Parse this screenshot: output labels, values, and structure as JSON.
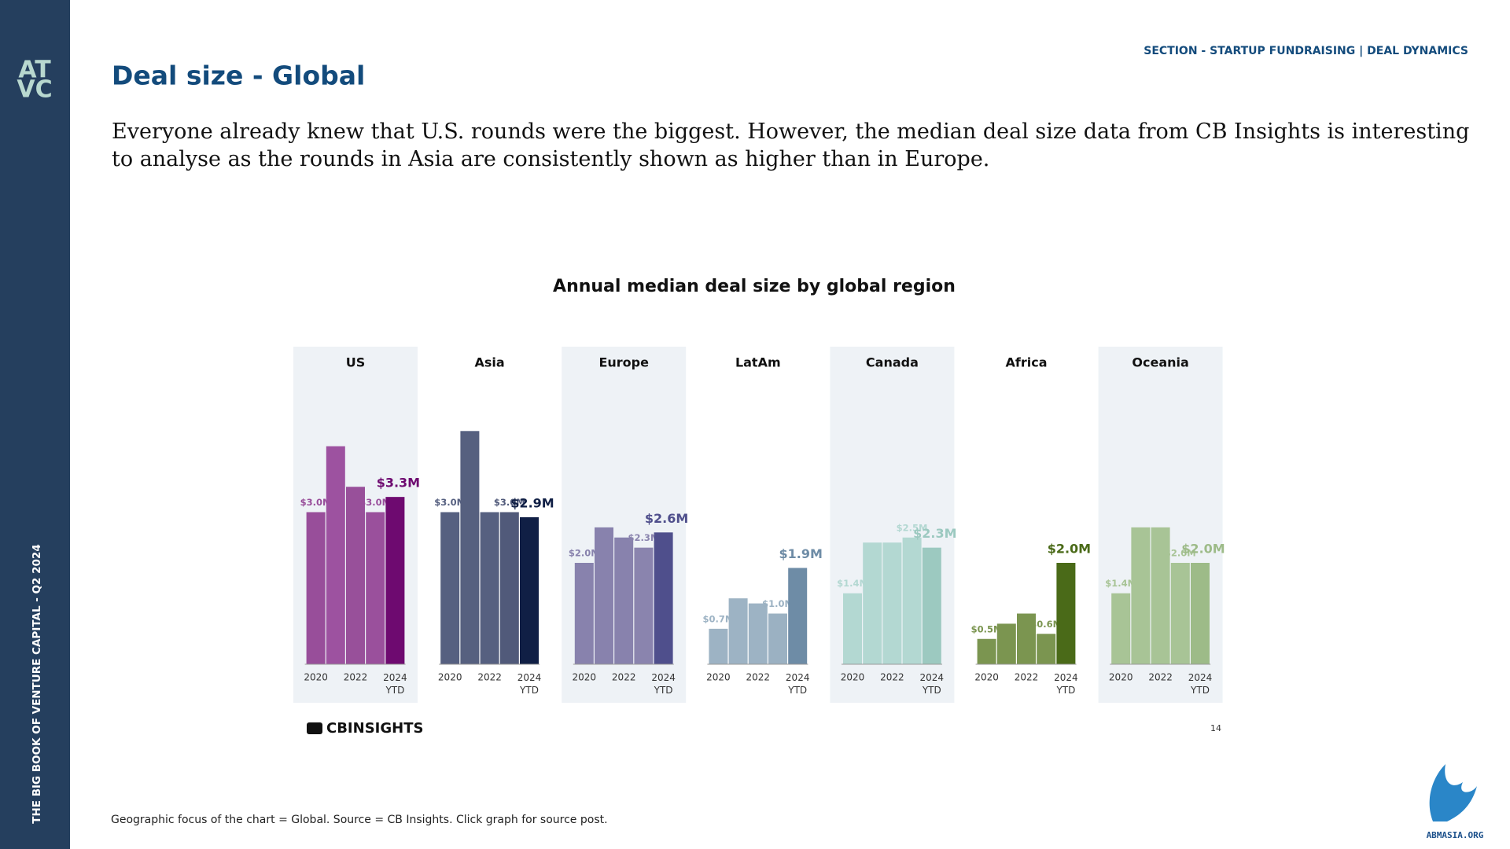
{
  "slide": {
    "section": "SECTION - STARTUP FUNDRAISING | DEAL DYNAMICS",
    "title": "Deal size - Global",
    "body": "Everyone already knew that U.S. rounds were the biggest. However, the median deal size data from CB Insights is interesting to analyse as the rounds in Asia are consistently shown as higher than in Europe.",
    "chart_title": "Annual median deal size by global region",
    "source_logo": "CBINSIGHTS",
    "page_number": "14",
    "footnote": "Geographic focus of the chart = Global. Source = CB Insights. Click graph for source post.",
    "sidebar": "THE BIG BOOK OF VENTURE CAPITAL - Q2 2024",
    "logo_top": "AT",
    "logo_bottom": "VC",
    "brand": "ABMASIA.ORG"
  },
  "chart_data": [
    {
      "type": "bar",
      "title": "US",
      "categories": [
        "2020",
        null,
        "2022",
        null,
        "2024 YTD"
      ],
      "values": [
        3.0,
        4.3,
        3.5,
        3.0,
        3.3
      ],
      "value_labels": [
        "$3.0M",
        null,
        null,
        "$3.0M",
        "$3.3M"
      ],
      "colors": [
        "#984e9a",
        "#9d52a0",
        "#98509a",
        "#9a509c",
        "#6e0a70"
      ],
      "ylim": [
        0,
        6
      ],
      "panel_shading": true
    },
    {
      "type": "bar",
      "title": "Asia",
      "categories": [
        "2020",
        null,
        "2022",
        null,
        "2024 YTD"
      ],
      "values": [
        3.0,
        4.6,
        3.0,
        3.0,
        2.9
      ],
      "value_labels": [
        "$3.0M",
        null,
        null,
        "$3.0M",
        "$2.9M"
      ],
      "colors": [
        "#566080",
        "#56607f",
        "#566080",
        "#515a7a",
        "#101f45"
      ],
      "ylim": [
        0,
        6
      ],
      "panel_shading": false
    },
    {
      "type": "bar",
      "title": "Europe",
      "categories": [
        "2020",
        null,
        "2022",
        null,
        "2024 YTD"
      ],
      "values": [
        2.0,
        2.7,
        2.5,
        2.3,
        2.6
      ],
      "value_labels": [
        "$2.0M",
        null,
        null,
        "$2.3M",
        "$2.6M"
      ],
      "colors": [
        "#8882ad",
        "#8882ad",
        "#8882ad",
        "#8a84ae",
        "#4f4f8c"
      ],
      "ylim": [
        0,
        6
      ],
      "panel_shading": true
    },
    {
      "type": "bar",
      "title": "LatAm",
      "categories": [
        "2020",
        null,
        "2022",
        null,
        "2024 YTD"
      ],
      "values": [
        0.7,
        1.3,
        1.2,
        1.0,
        1.9
      ],
      "value_labels": [
        "$0.7M",
        null,
        null,
        "$1.0M",
        "$1.9M"
      ],
      "colors": [
        "#9db3c4",
        "#9db3c4",
        "#9db3c4",
        "#9bb1c2",
        "#6e8ca6"
      ],
      "ylim": [
        0,
        6
      ],
      "panel_shading": false
    },
    {
      "type": "bar",
      "title": "Canada",
      "categories": [
        "2020",
        null,
        "2022",
        null,
        "2024 YTD"
      ],
      "values": [
        1.4,
        2.4,
        2.4,
        2.5,
        2.3
      ],
      "value_labels": [
        "$1.4M",
        null,
        null,
        "$2.5M",
        "$2.3M"
      ],
      "colors": [
        "#b3d8d2",
        "#b3d8d2",
        "#b3d8d2",
        "#b3d8d2",
        "#9cc9c0"
      ],
      "ylim": [
        0,
        6
      ],
      "panel_shading": true
    },
    {
      "type": "bar",
      "title": "Africa",
      "categories": [
        "2020",
        null,
        "2022",
        null,
        "2024 YTD"
      ],
      "values": [
        0.5,
        0.8,
        1.0,
        0.6,
        2.0
      ],
      "value_labels": [
        "$0.5M",
        null,
        null,
        "$0.6M",
        "$2.0M"
      ],
      "colors": [
        "#7b9550",
        "#7b9550",
        "#7b9550",
        "#7b9550",
        "#4a6a18"
      ],
      "ylim": [
        0,
        6
      ],
      "panel_shading": false
    },
    {
      "type": "bar",
      "title": "Oceania",
      "categories": [
        "2020",
        null,
        "2022",
        null,
        "2024 YTD"
      ],
      "values": [
        1.4,
        2.7,
        2.7,
        2.0,
        2.0
      ],
      "value_labels": [
        "$1.4M",
        null,
        null,
        "$2.0M",
        "$2.0M"
      ],
      "colors": [
        "#a8c496",
        "#a8c496",
        "#a8c496",
        "#a8c496",
        "#9dbb88"
      ],
      "ylim": [
        0,
        6
      ],
      "panel_shading": true
    }
  ]
}
